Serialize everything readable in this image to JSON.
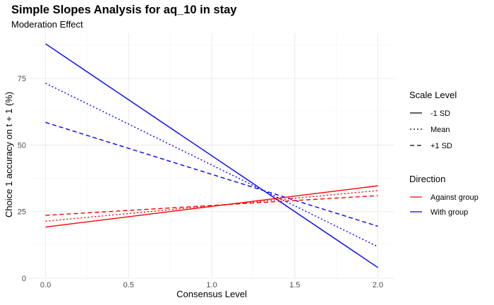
{
  "chart_data": {
    "type": "line",
    "title": "Simple Slopes Analysis for aq_10 in stay",
    "subtitle": "Moderation Effect",
    "xlabel": "Consensus Level",
    "ylabel": "Choice 1 accuracy on t + 1 (%)",
    "xlim": [
      -0.1,
      2.1
    ],
    "ylim": [
      0,
      92
    ],
    "x_ticks": [
      0.0,
      0.5,
      1.0,
      1.5,
      2.0
    ],
    "x_tick_labels": [
      "0.0",
      "0.5",
      "1.0",
      "1.5",
      "2.0"
    ],
    "y_ticks": [
      0,
      25,
      50,
      75
    ],
    "y_tick_labels": [
      "0",
      "25",
      "50",
      "75"
    ],
    "grid": true,
    "legend_placement": "right",
    "legends": {
      "scale_level": {
        "title": "Scale Level",
        "entries": [
          {
            "label": "-1 SD",
            "linetype": "solid"
          },
          {
            "label": "Mean",
            "linetype": "dotted"
          },
          {
            "label": "+1 SD",
            "linetype": "dashed"
          }
        ]
      },
      "direction": {
        "title": "Direction",
        "entries": [
          {
            "label": "Against group",
            "color": "#FF0000"
          },
          {
            "label": "With group",
            "color": "#0000FF"
          }
        ]
      }
    },
    "series": [
      {
        "direction": "With group",
        "level": "-1 SD",
        "linetype": "solid",
        "color": "#0000FF",
        "x": [
          0,
          2
        ],
        "y": [
          88.0,
          4.0
        ]
      },
      {
        "direction": "With group",
        "level": "Mean",
        "linetype": "dotted",
        "color": "#0000FF",
        "x": [
          0,
          2
        ],
        "y": [
          73.2,
          11.8
        ]
      },
      {
        "direction": "With group",
        "level": "+1 SD",
        "linetype": "dashed",
        "color": "#0000FF",
        "x": [
          0,
          2
        ],
        "y": [
          58.5,
          19.5
        ]
      },
      {
        "direction": "Against group",
        "level": "-1 SD",
        "linetype": "solid",
        "color": "#FF0000",
        "x": [
          0,
          2
        ],
        "y": [
          19.2,
          34.7
        ]
      },
      {
        "direction": "Against group",
        "level": "Mean",
        "linetype": "dotted",
        "color": "#FF0000",
        "x": [
          0,
          2
        ],
        "y": [
          21.4,
          32.9
        ]
      },
      {
        "direction": "Against group",
        "level": "+1 SD",
        "linetype": "dashed",
        "color": "#FF0000",
        "x": [
          0,
          2
        ],
        "y": [
          23.6,
          31.0
        ]
      }
    ]
  }
}
